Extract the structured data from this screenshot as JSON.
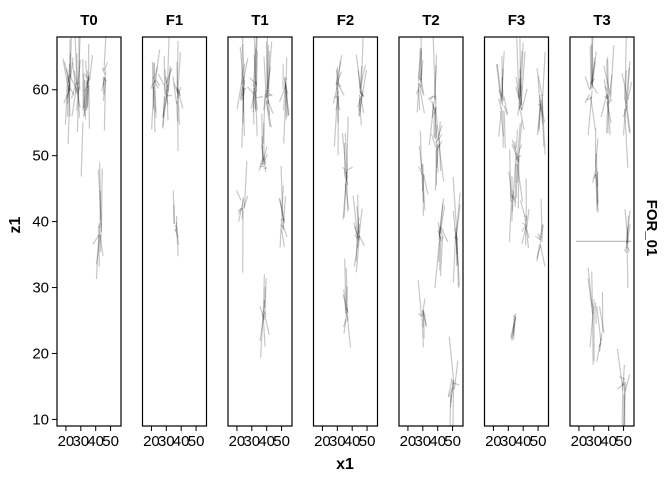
{
  "chart_data": {
    "type": "line",
    "xlabel": "x1",
    "ylabel": "z1",
    "strip_label": "FOR_01",
    "xlim": [
      14,
      57
    ],
    "ylim": [
      9,
      68
    ],
    "x_ticks": [
      20,
      30,
      40,
      50
    ],
    "y_ticks": [
      10,
      20,
      30,
      40,
      50,
      60
    ],
    "line_color": "#000000",
    "panels": [
      {
        "title": "T0",
        "clusters": [
          {
            "x": 22,
            "z": 61,
            "n": 16,
            "len": 5,
            "angle": 0
          },
          {
            "x": 28,
            "z": 60,
            "n": 14,
            "len": 5,
            "angle": 4
          },
          {
            "x": 35,
            "z": 61,
            "n": 12,
            "len": 4,
            "angle": 0
          },
          {
            "x": 32,
            "z": 56,
            "n": 6,
            "len": 5,
            "angle": -2
          },
          {
            "x": 46,
            "z": 62,
            "n": 9,
            "len": 4,
            "angle": 0
          },
          {
            "x": 43,
            "z": 39,
            "n": 10,
            "len": 5,
            "angle": 0
          }
        ]
      },
      {
        "title": "F1",
        "clusters": [
          {
            "x": 22,
            "z": 61,
            "n": 14,
            "len": 4,
            "angle": 0
          },
          {
            "x": 30,
            "z": 60,
            "n": 15,
            "len": 5,
            "angle": 3
          },
          {
            "x": 38,
            "z": 59,
            "n": 12,
            "len": 5,
            "angle": 4
          },
          {
            "x": 36,
            "z": 39,
            "n": 7,
            "len": 4,
            "angle": 0
          }
        ]
      },
      {
        "title": "T1",
        "clusters": [
          {
            "x": 24,
            "z": 61,
            "n": 16,
            "len": 5,
            "angle": 0
          },
          {
            "x": 32,
            "z": 60,
            "n": 18,
            "len": 5,
            "angle": 3
          },
          {
            "x": 40,
            "z": 59,
            "n": 16,
            "len": 5,
            "angle": 4
          },
          {
            "x": 52,
            "z": 61,
            "n": 10,
            "len": 5,
            "angle": 0
          },
          {
            "x": 38,
            "z": 49,
            "n": 12,
            "len": 4,
            "angle": 0
          },
          {
            "x": 24,
            "z": 43,
            "n": 8,
            "len": 5,
            "angle": 0
          },
          {
            "x": 51,
            "z": 40,
            "n": 10,
            "len": 5,
            "angle": 0
          },
          {
            "x": 38,
            "z": 26,
            "n": 10,
            "len": 4,
            "angle": 0
          }
        ]
      },
      {
        "title": "F2",
        "clusters": [
          {
            "x": 30,
            "z": 60,
            "n": 15,
            "len": 5,
            "angle": 0
          },
          {
            "x": 46,
            "z": 59,
            "n": 14,
            "len": 5,
            "angle": 4
          },
          {
            "x": 36,
            "z": 47,
            "n": 12,
            "len": 5,
            "angle": 0
          },
          {
            "x": 44,
            "z": 38,
            "n": 14,
            "len": 4,
            "angle": 0
          },
          {
            "x": 36,
            "z": 26,
            "n": 8,
            "len": 5,
            "angle": 0
          }
        ]
      },
      {
        "title": "T2",
        "clusters": [
          {
            "x": 28,
            "z": 61,
            "n": 14,
            "len": 4,
            "angle": 0
          },
          {
            "x": 38,
            "z": 58,
            "n": 14,
            "len": 5,
            "angle": 4
          },
          {
            "x": 40,
            "z": 52,
            "n": 12,
            "len": 5,
            "angle": -3
          },
          {
            "x": 30,
            "z": 48,
            "n": 8,
            "len": 4,
            "angle": 0
          },
          {
            "x": 42,
            "z": 38,
            "n": 12,
            "len": 5,
            "angle": 0
          },
          {
            "x": 52,
            "z": 38,
            "n": 12,
            "len": 5,
            "angle": 0
          },
          {
            "x": 30,
            "z": 26,
            "n": 8,
            "len": 4,
            "angle": 0
          },
          {
            "x": 50,
            "z": 15,
            "n": 10,
            "len": 5,
            "angle": 0
          }
        ]
      },
      {
        "title": "F3",
        "clusters": [
          {
            "x": 26,
            "z": 58,
            "n": 14,
            "len": 5,
            "angle": 0
          },
          {
            "x": 38,
            "z": 58,
            "n": 14,
            "len": 5,
            "angle": 3
          },
          {
            "x": 52,
            "z": 58,
            "n": 12,
            "len": 5,
            "angle": 0
          },
          {
            "x": 36,
            "z": 50,
            "n": 14,
            "len": 5,
            "angle": -3
          },
          {
            "x": 32,
            "z": 44,
            "n": 8,
            "len": 4,
            "angle": 0
          },
          {
            "x": 42,
            "z": 40,
            "n": 10,
            "len": 4,
            "angle": 0
          },
          {
            "x": 52,
            "z": 37,
            "n": 8,
            "len": 4,
            "angle": 0
          },
          {
            "x": 34,
            "z": 25,
            "n": 6,
            "len": 4,
            "angle": 0
          }
        ]
      },
      {
        "title": "T3",
        "clusters": [
          {
            "x": 28,
            "z": 60,
            "n": 14,
            "len": 5,
            "angle": 0
          },
          {
            "x": 40,
            "z": 59,
            "n": 14,
            "len": 5,
            "angle": 3
          },
          {
            "x": 52,
            "z": 58,
            "n": 12,
            "len": 5,
            "angle": 0
          },
          {
            "x": 32,
            "z": 48,
            "n": 10,
            "len": 4,
            "angle": 0
          },
          {
            "x": 52,
            "z": 36,
            "n": 8,
            "len": 4,
            "angle": 0
          },
          {
            "x": 30,
            "z": 27,
            "n": 7,
            "len": 5,
            "angle": 0
          },
          {
            "x": 36,
            "z": 22,
            "n": 6,
            "len": 5,
            "angle": 0
          },
          {
            "x": 50,
            "z": 15,
            "n": 10,
            "len": 5,
            "angle": 0
          }
        ],
        "extra_segments": [
          {
            "x1": 18,
            "z1": 37,
            "x2": 55,
            "z2": 37
          }
        ]
      }
    ]
  }
}
